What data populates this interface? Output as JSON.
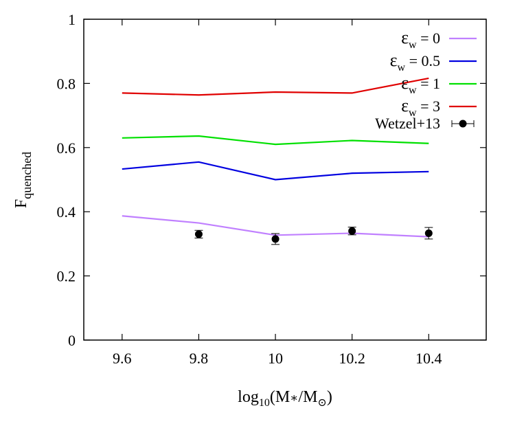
{
  "chart_data": {
    "type": "line",
    "xlabel": {
      "main": "log",
      "sub": "10",
      "rest_a": "(M",
      "star": "∗",
      "rest_b": "/M",
      "sun": "⊙",
      "close": ")"
    },
    "ylabel": {
      "main": "F",
      "sub": "quenched"
    },
    "xlim": [
      9.5,
      10.55
    ],
    "ylim": [
      0,
      1
    ],
    "x_ticks": [
      9.6,
      9.8,
      10,
      10.2,
      10.4
    ],
    "x_tick_labels": [
      "9.6",
      "9.8",
      "10",
      "10.2",
      "10.4"
    ],
    "y_ticks": [
      0,
      0.2,
      0.4,
      0.6,
      0.8,
      1
    ],
    "y_tick_labels": [
      "0",
      "0.2",
      "0.4",
      "0.6",
      "0.8",
      "1"
    ],
    "grid": false,
    "legend_position": "top-right",
    "x": [
      9.6,
      9.8,
      10.0,
      10.2,
      10.4
    ],
    "series": [
      {
        "name_main": "ε",
        "name_sub": "w",
        "name_rest": " = 0",
        "color": "#c080ff",
        "values": [
          0.387,
          0.365,
          0.327,
          0.333,
          0.322
        ]
      },
      {
        "name_main": "ε",
        "name_sub": "w",
        "name_rest": " = 0.5",
        "color": "#0000e0",
        "values": [
          0.533,
          0.555,
          0.5,
          0.52,
          0.525
        ]
      },
      {
        "name_main": "ε",
        "name_sub": "w",
        "name_rest": " = 1",
        "color": "#00e000",
        "values": [
          0.63,
          0.636,
          0.61,
          0.622,
          0.613
        ]
      },
      {
        "name_main": "ε",
        "name_sub": "w",
        "name_rest": " = 3",
        "color": "#e00000",
        "values": [
          0.77,
          0.764,
          0.773,
          0.77,
          0.816
        ]
      }
    ],
    "observations": {
      "name": "Wetzel+13",
      "color": "#000000",
      "x": [
        9.8,
        10.0,
        10.2,
        10.4
      ],
      "y": [
        0.33,
        0.315,
        0.34,
        0.333
      ],
      "yerr": [
        0.012,
        0.017,
        0.012,
        0.018
      ]
    }
  }
}
